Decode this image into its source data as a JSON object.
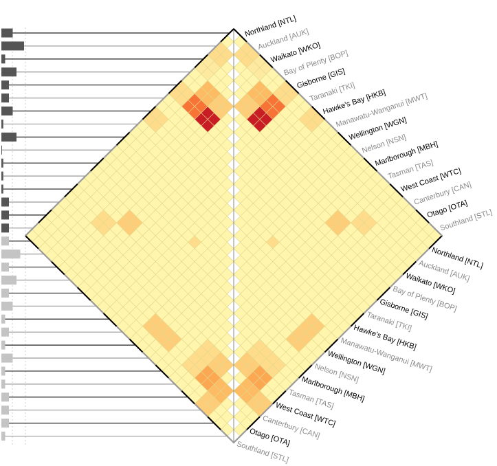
{
  "chart_data": {
    "type": "heatmap",
    "title": "",
    "regions": [
      {
        "name": "Northland [NTL]",
        "group": "dark"
      },
      {
        "name": "Auckland [AUK]",
        "group": "light"
      },
      {
        "name": "Waikato [WKO]",
        "group": "dark"
      },
      {
        "name": "Bay of Plenty [BOP]",
        "group": "light"
      },
      {
        "name": "Gisborne [GIS]",
        "group": "dark"
      },
      {
        "name": "Taranaki [TKI]",
        "group": "light"
      },
      {
        "name": "Hawke's Bay [HKB]",
        "group": "dark"
      },
      {
        "name": "Manawatu-Wanganui [MWT]",
        "group": "light"
      },
      {
        "name": "Wellington [WGN]",
        "group": "dark"
      },
      {
        "name": "Nelson [NSN]",
        "group": "light"
      },
      {
        "name": "Marlborough [MBH]",
        "group": "dark"
      },
      {
        "name": "Tasman [TAS]",
        "group": "light"
      },
      {
        "name": "West Coast [WTC]",
        "group": "dark"
      },
      {
        "name": "Canterbury [CAN]",
        "group": "light"
      },
      {
        "name": "Otago [OTA]",
        "group": "dark"
      },
      {
        "name": "Southland [STL]",
        "group": "light"
      }
    ],
    "upper_heatmap": {
      "hot_cells": [
        {
          "row": 0,
          "col": 1,
          "level": 2
        },
        {
          "row": 0,
          "col": 2,
          "level": 1
        },
        {
          "row": 1,
          "col": 3,
          "level": 4
        },
        {
          "row": 1,
          "col": 4,
          "level": 7
        },
        {
          "row": 2,
          "col": 4,
          "level": 9
        },
        {
          "row": 2,
          "col": 3,
          "level": 3
        },
        {
          "row": 0,
          "col": 4,
          "level": 2
        },
        {
          "row": 0,
          "col": 6,
          "level": 2
        },
        {
          "row": 7,
          "col": 9,
          "level": 3
        },
        {
          "row": 8,
          "col": 10,
          "level": 4
        },
        {
          "row": 3,
          "col": 11,
          "level": 3
        },
        {
          "row": 6,
          "col": 11,
          "level": 3
        },
        {
          "row": 4,
          "col": 12,
          "level": 3
        },
        {
          "row": 6,
          "col": 13,
          "level": 2
        },
        {
          "row": 5,
          "col": 13,
          "level": 2
        },
        {
          "row": 2,
          "col": 12,
          "level": 2
        },
        {
          "row": 3,
          "col": 14,
          "level": 4
        },
        {
          "row": 4,
          "col": 14,
          "level": 3
        },
        {
          "row": 12,
          "col": 15,
          "level": 2
        },
        {
          "row": 13,
          "col": 15,
          "level": 2
        },
        {
          "row": 12,
          "col": 14,
          "level": 2
        }
      ]
    },
    "lower_heatmap": {
      "hot_cells": [
        {
          "row": 1,
          "col": 3,
          "level": 2
        },
        {
          "row": 0,
          "col": 1,
          "level": 3
        },
        {
          "row": 2,
          "col": 3,
          "level": 5
        },
        {
          "row": 3,
          "col": 4,
          "level": 2
        },
        {
          "row": 2,
          "col": 4,
          "level": 2
        },
        {
          "row": 0,
          "col": 4,
          "level": 1
        },
        {
          "row": 8,
          "col": 14,
          "level": 3
        },
        {
          "row": 9,
          "col": 14,
          "level": 3
        },
        {
          "row": 11,
          "col": 14,
          "level": 2
        },
        {
          "row": 12,
          "col": 14,
          "level": 5
        },
        {
          "row": 13,
          "col": 14,
          "level": 4
        },
        {
          "row": 12,
          "col": 13,
          "level": 3
        },
        {
          "row": 13,
          "col": 15,
          "level": 3
        },
        {
          "row": 11,
          "col": 13,
          "level": 2
        },
        {
          "row": 5,
          "col": 8,
          "level": 2
        },
        {
          "row": 6,
          "col": 9,
          "level": 2
        },
        {
          "row": 5,
          "col": 7,
          "level": 2
        },
        {
          "row": 2,
          "col": 6,
          "level": 2
        },
        {
          "row": 4,
          "col": 6,
          "level": 2
        }
      ]
    },
    "bar_values_top": [
      3,
      6,
      1,
      4,
      2,
      2,
      3,
      0.5,
      4,
      0,
      0.5,
      0.5,
      0.5,
      2,
      2,
      2
    ],
    "bar_values_bottom": [
      2,
      5,
      2,
      4,
      2,
      3,
      1,
      2,
      1,
      3,
      1,
      1,
      2,
      2,
      2,
      1
    ]
  },
  "colors": {
    "base": "#fff5ad",
    "grid": "#e2d98c",
    "bar_dark": "#555555",
    "bar_light": "#c4c4c4",
    "label_dark": "#000000",
    "label_light": "#8a8a8a",
    "frame": "#888888"
  }
}
